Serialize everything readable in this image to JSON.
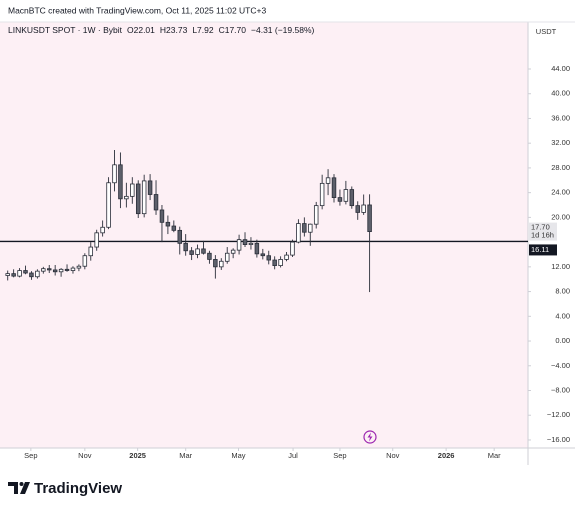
{
  "header": {
    "author_line": "MacnBTC created with TradingView.com, Oct 11, 2025 11:02 UTC+3"
  },
  "footer": {
    "brand": "TradingView"
  },
  "chart_data": {
    "type": "candlestick",
    "symbol": "LINKUSDT SPOT · 1W · Bybit",
    "legend_values": [
      "O22.01",
      "H23.73",
      "L7.92",
      "C17.70",
      "−4.31 (−19.58%)"
    ],
    "currency": "USDT",
    "ohlc": [
      [
        10.6,
        11.4,
        9.8,
        10.9
      ],
      [
        10.9,
        11.6,
        10.3,
        10.5
      ],
      [
        10.5,
        11.8,
        10.3,
        11.4
      ],
      [
        11.4,
        12.2,
        10.8,
        11.0
      ],
      [
        11.0,
        11.3,
        9.9,
        10.4
      ],
      [
        10.4,
        11.6,
        10.1,
        11.3
      ],
      [
        11.3,
        12.0,
        10.9,
        11.7
      ],
      [
        11.7,
        12.3,
        11.0,
        11.5
      ],
      [
        11.5,
        12.3,
        10.6,
        11.2
      ],
      [
        11.2,
        11.8,
        10.4,
        11.6
      ],
      [
        11.6,
        12.4,
        11.2,
        11.4
      ],
      [
        11.4,
        12.1,
        10.9,
        11.8
      ],
      [
        11.8,
        12.4,
        11.3,
        12.1
      ],
      [
        12.1,
        14.2,
        11.6,
        13.8
      ],
      [
        13.8,
        16.0,
        13.0,
        15.2
      ],
      [
        15.2,
        18.0,
        14.6,
        17.5
      ],
      [
        17.5,
        19.5,
        16.9,
        18.4
      ],
      [
        18.4,
        26.5,
        18.1,
        25.6
      ],
      [
        25.6,
        30.9,
        24.2,
        28.5
      ],
      [
        28.5,
        30.5,
        21.5,
        23.0
      ],
      [
        23.0,
        25.6,
        21.6,
        23.4
      ],
      [
        23.4,
        26.5,
        22.2,
        25.4
      ],
      [
        25.4,
        26.0,
        19.9,
        20.6
      ],
      [
        20.6,
        26.9,
        20.0,
        25.9
      ],
      [
        25.9,
        27.0,
        22.8,
        23.7
      ],
      [
        23.7,
        26.0,
        20.4,
        21.2
      ],
      [
        21.2,
        22.0,
        16.0,
        19.2
      ],
      [
        19.2,
        20.3,
        17.3,
        18.6
      ],
      [
        18.6,
        19.5,
        17.6,
        17.9
      ],
      [
        17.9,
        18.5,
        14.0,
        15.8
      ],
      [
        15.8,
        17.3,
        13.8,
        14.6
      ],
      [
        14.6,
        15.2,
        13.1,
        14.0
      ],
      [
        14.0,
        15.6,
        13.4,
        14.9
      ],
      [
        14.9,
        16.2,
        14.0,
        14.2
      ],
      [
        14.2,
        14.6,
        12.5,
        13.2
      ],
      [
        13.2,
        13.9,
        10.1,
        12.0
      ],
      [
        12.0,
        13.4,
        11.5,
        12.9
      ],
      [
        12.9,
        15.2,
        12.5,
        14.2
      ],
      [
        14.2,
        15.0,
        13.4,
        14.7
      ],
      [
        14.7,
        17.2,
        14.0,
        16.4
      ],
      [
        16.4,
        17.6,
        15.2,
        15.6
      ],
      [
        15.6,
        16.8,
        14.8,
        15.8
      ],
      [
        15.8,
        16.4,
        13.5,
        14.1
      ],
      [
        14.1,
        14.9,
        13.2,
        13.8
      ],
      [
        13.8,
        14.6,
        12.4,
        13.1
      ],
      [
        13.1,
        13.7,
        11.6,
        12.2
      ],
      [
        12.2,
        13.7,
        11.9,
        13.2
      ],
      [
        13.2,
        14.4,
        12.9,
        13.9
      ],
      [
        13.9,
        16.4,
        13.6,
        16.0
      ],
      [
        16.0,
        19.7,
        15.8,
        19.0
      ],
      [
        19.0,
        20.0,
        16.9,
        17.6
      ],
      [
        17.6,
        19.0,
        15.4,
        18.9
      ],
      [
        18.9,
        22.5,
        18.2,
        21.9
      ],
      [
        21.9,
        26.9,
        21.3,
        25.5
      ],
      [
        25.5,
        27.8,
        23.6,
        26.4
      ],
      [
        26.4,
        27.0,
        22.4,
        23.2
      ],
      [
        23.2,
        24.5,
        21.9,
        22.6
      ],
      [
        22.6,
        25.9,
        22.1,
        24.5
      ],
      [
        24.5,
        25.0,
        21.4,
        21.9
      ],
      [
        21.9,
        22.6,
        19.6,
        20.8
      ],
      [
        20.8,
        23.7,
        20.4,
        22.0
      ],
      [
        22.01,
        23.73,
        7.92,
        17.7
      ]
    ],
    "up_color": "#ffffff",
    "down_color": "#5d606b",
    "border_color": "#2a2e39",
    "background": "#fdf0f5",
    "xlim": [
      -1.3,
      87.7
    ],
    "xticks": [
      {
        "value": 3.9,
        "label": "Sep"
      },
      {
        "value": 13.0,
        "label": "Nov"
      },
      {
        "value": 21.9,
        "label": "2025"
      },
      {
        "value": 30.0,
        "label": "Mar"
      },
      {
        "value": 38.9,
        "label": "May"
      },
      {
        "value": 48.1,
        "label": "Jul"
      },
      {
        "value": 56.0,
        "label": "Sep"
      },
      {
        "value": 64.9,
        "label": "Nov"
      },
      {
        "value": 73.9,
        "label": "2026"
      },
      {
        "value": 82.0,
        "label": "Mar"
      }
    ],
    "ylim": [
      -17.3,
      51.6
    ],
    "yticks": [
      {
        "value": 44,
        "label": "44.00"
      },
      {
        "value": 40,
        "label": "40.00"
      },
      {
        "value": 36,
        "label": "36.00"
      },
      {
        "value": 32,
        "label": "32.00"
      },
      {
        "value": 28,
        "label": "28.00"
      },
      {
        "value": 24,
        "label": "24.00"
      },
      {
        "value": 20,
        "label": "20.00"
      },
      {
        "value": 12,
        "label": "12.00"
      },
      {
        "value": 8,
        "label": "8.00"
      },
      {
        "value": 4,
        "label": "4.00"
      },
      {
        "value": 0,
        "label": "0.00"
      },
      {
        "value": -4,
        "label": "−4.00"
      },
      {
        "value": -8,
        "label": "−8.00"
      },
      {
        "value": -12,
        "label": "−12.00"
      },
      {
        "value": -16,
        "label": "−16.00"
      }
    ],
    "hline": 16.11,
    "last_price_label": "17.70",
    "countdown": "1d 16h"
  }
}
